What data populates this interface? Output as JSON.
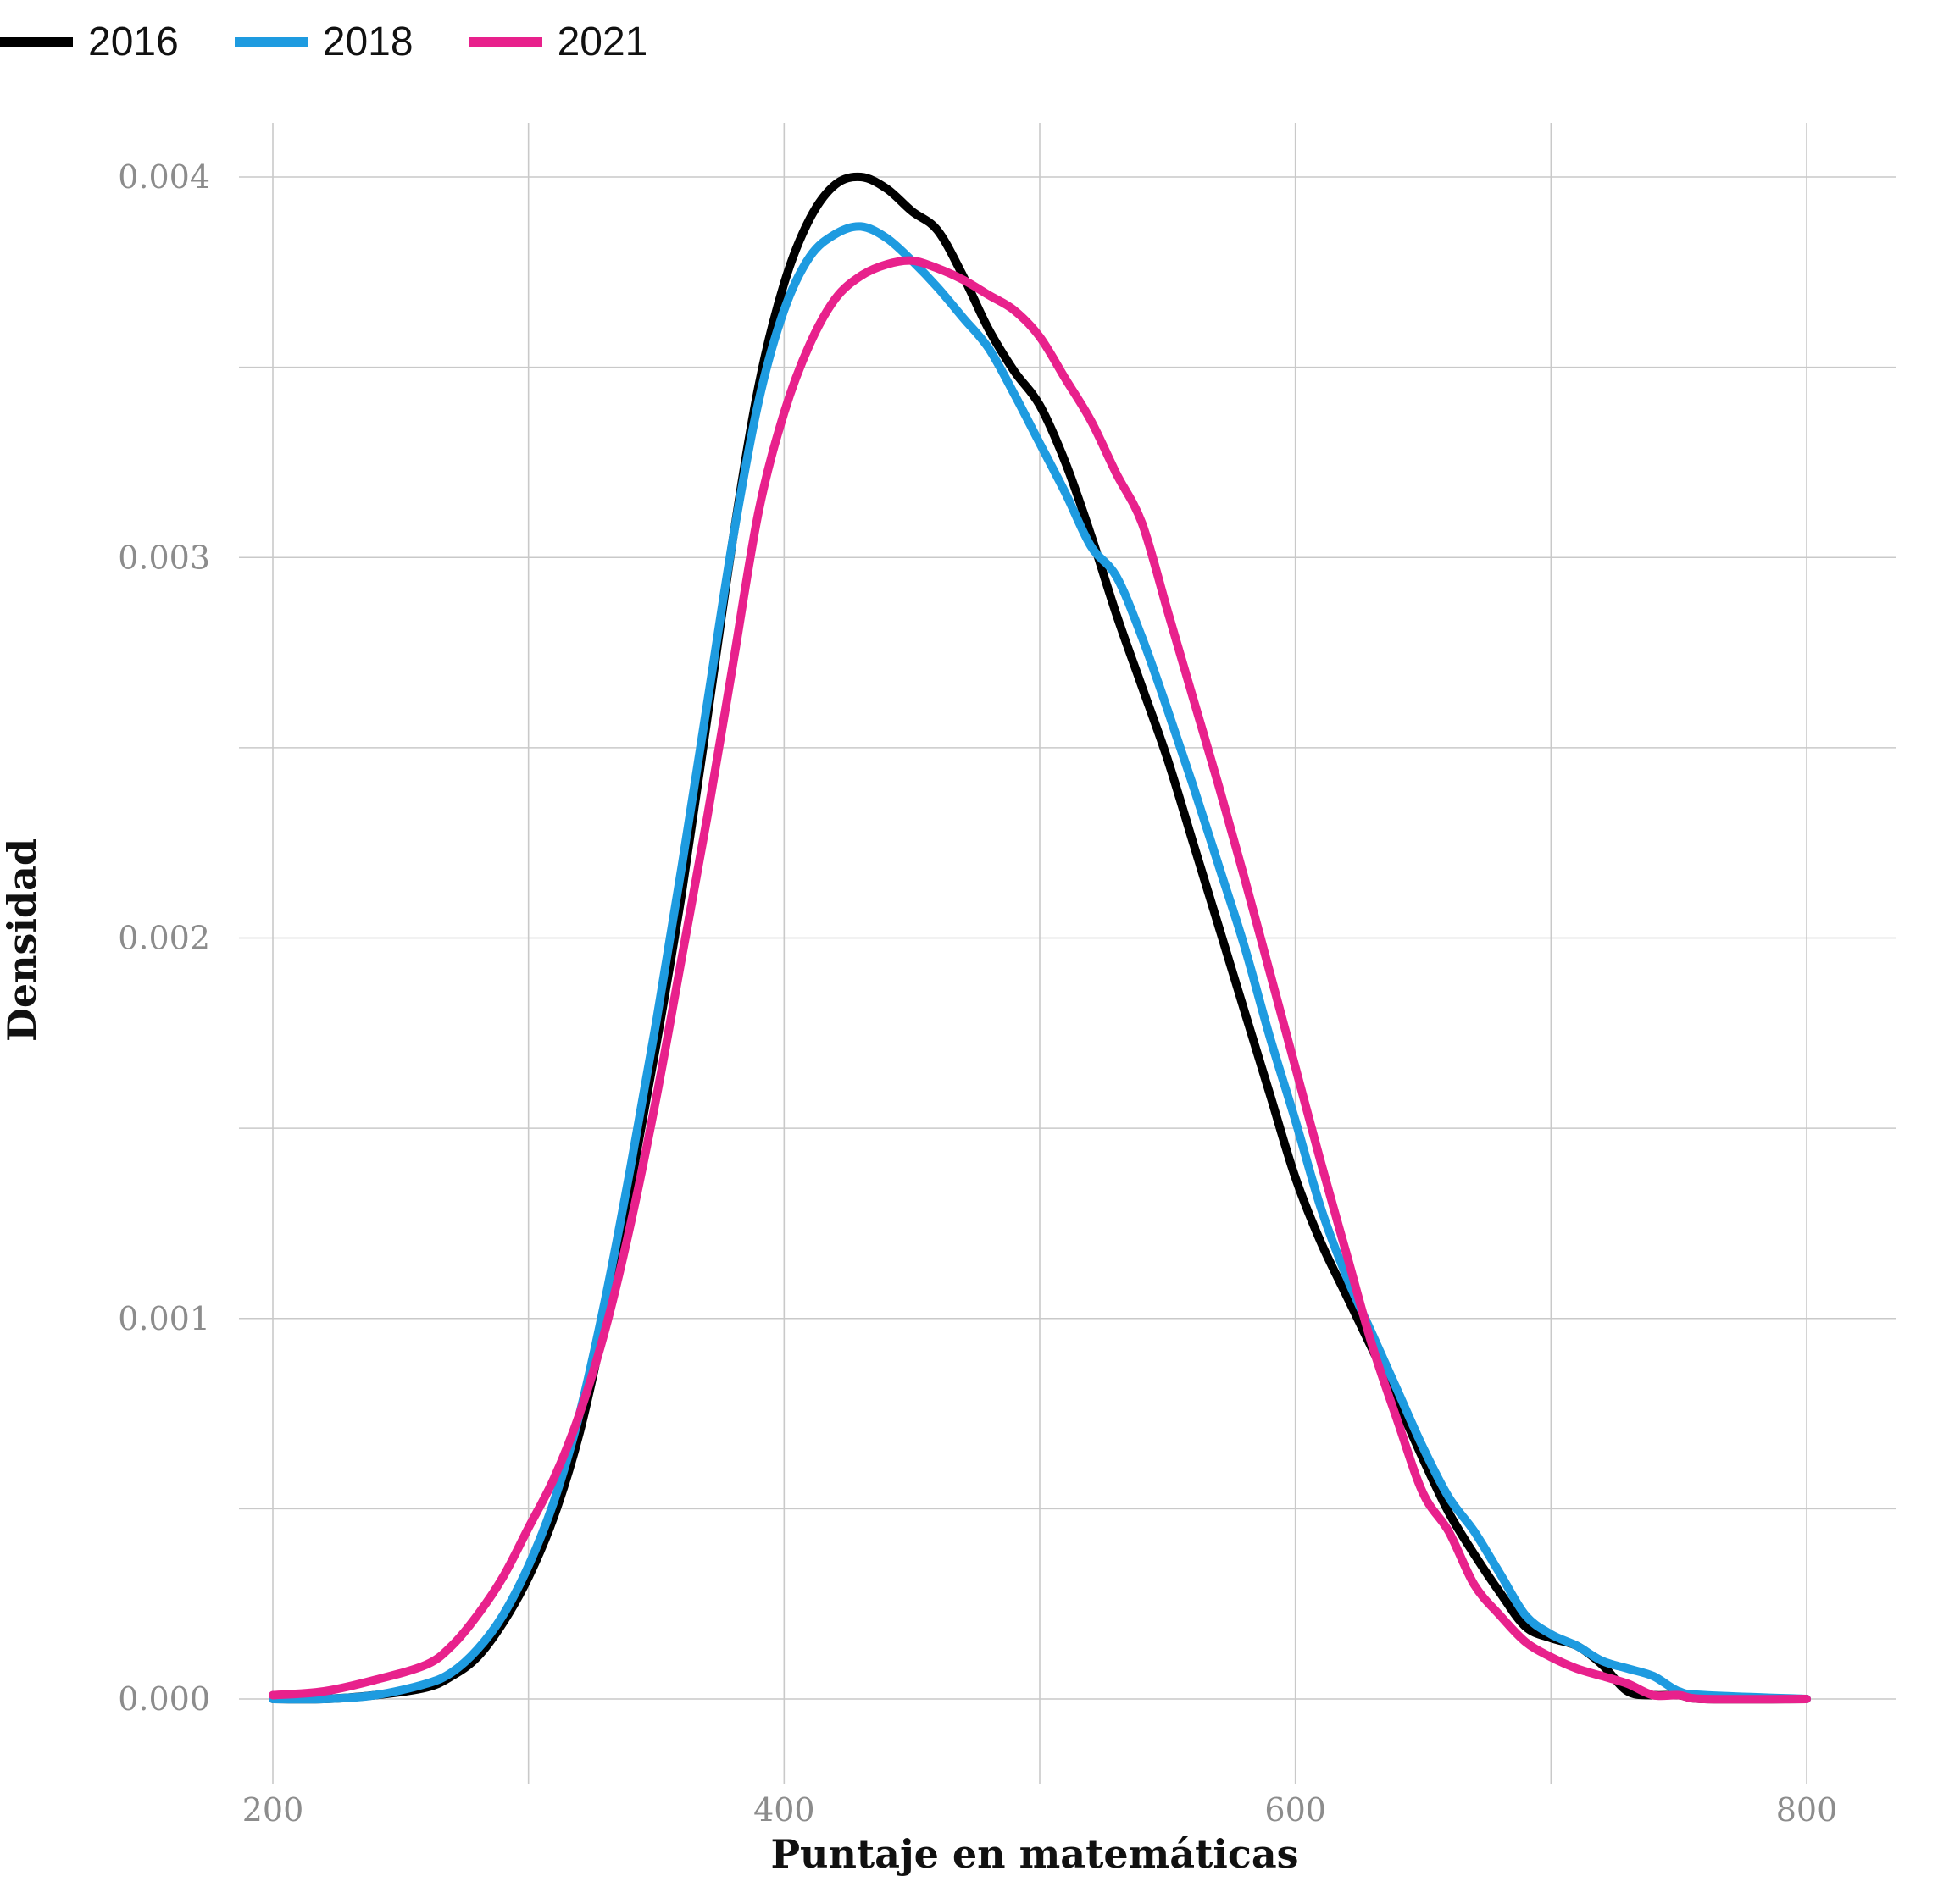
{
  "chart_data": {
    "type": "line",
    "title": "",
    "xlabel": "Puntaje en matemáticas",
    "ylabel": "Densidad",
    "xlim": [
      200,
      800
    ],
    "ylim": [
      0,
      0.004
    ],
    "x_ticks": [
      "200",
      "400",
      "600",
      "800"
    ],
    "y_ticks": [
      "0.000",
      "0.001",
      "0.002",
      "0.003",
      "0.004"
    ],
    "grid": true,
    "legend_position": "top-left",
    "series": [
      {
        "name": "2016",
        "color": "#000000",
        "points": [
          [
            200,
            0
          ],
          [
            220,
            0
          ],
          [
            240,
            1e-05
          ],
          [
            260,
            3e-05
          ],
          [
            270,
            6e-05
          ],
          [
            280,
            0.00011
          ],
          [
            290,
            0.0002
          ],
          [
            300,
            0.00032
          ],
          [
            310,
            0.00048
          ],
          [
            320,
            0.0007
          ],
          [
            330,
            0.001
          ],
          [
            340,
            0.00135
          ],
          [
            350,
            0.00172
          ],
          [
            360,
            0.00212
          ],
          [
            370,
            0.00258
          ],
          [
            380,
            0.00305
          ],
          [
            390,
            0.00345
          ],
          [
            400,
            0.00372
          ],
          [
            410,
            0.00389
          ],
          [
            420,
            0.00398
          ],
          [
            430,
            0.004
          ],
          [
            440,
            0.00397
          ],
          [
            450,
            0.00391
          ],
          [
            460,
            0.00386
          ],
          [
            470,
            0.00374
          ],
          [
            480,
            0.0036
          ],
          [
            490,
            0.00349
          ],
          [
            500,
            0.0034
          ],
          [
            510,
            0.00325
          ],
          [
            520,
            0.00306
          ],
          [
            530,
            0.00285
          ],
          [
            540,
            0.00266
          ],
          [
            550,
            0.00247
          ],
          [
            560,
            0.00225
          ],
          [
            570,
            0.00203
          ],
          [
            580,
            0.00181
          ],
          [
            590,
            0.00159
          ],
          [
            600,
            0.00137
          ],
          [
            610,
            0.0012
          ],
          [
            620,
            0.00106
          ],
          [
            630,
            0.00092
          ],
          [
            640,
            0.00078
          ],
          [
            650,
            0.00063
          ],
          [
            660,
            0.00049
          ],
          [
            670,
            0.00038
          ],
          [
            680,
            0.00028
          ],
          [
            690,
            0.00019
          ],
          [
            700,
            0.00016
          ],
          [
            710,
            0.00014
          ],
          [
            720,
            9e-05
          ],
          [
            730,
            2e-05
          ],
          [
            740,
            1e-05
          ],
          [
            750,
            1e-05
          ],
          [
            760,
            0
          ],
          [
            800,
            0
          ]
        ]
      },
      {
        "name": "2018",
        "color": "#1e9be0",
        "points": [
          [
            200,
            0
          ],
          [
            220,
            0
          ],
          [
            240,
            1e-05
          ],
          [
            260,
            4e-05
          ],
          [
            270,
            7e-05
          ],
          [
            280,
            0.00013
          ],
          [
            290,
            0.00022
          ],
          [
            300,
            0.00035
          ],
          [
            310,
            0.00052
          ],
          [
            320,
            0.00075
          ],
          [
            330,
            0.00105
          ],
          [
            340,
            0.0014
          ],
          [
            350,
            0.00178
          ],
          [
            360,
            0.00219
          ],
          [
            370,
            0.00262
          ],
          [
            380,
            0.00305
          ],
          [
            390,
            0.00341
          ],
          [
            400,
            0.00365
          ],
          [
            410,
            0.00379
          ],
          [
            420,
            0.00385
          ],
          [
            430,
            0.00387
          ],
          [
            440,
            0.00384
          ],
          [
            450,
            0.00378
          ],
          [
            460,
            0.00371
          ],
          [
            470,
            0.00363
          ],
          [
            480,
            0.00355
          ],
          [
            490,
            0.00343
          ],
          [
            500,
            0.0033
          ],
          [
            510,
            0.00317
          ],
          [
            520,
            0.00303
          ],
          [
            530,
            0.00295
          ],
          [
            540,
            0.00279
          ],
          [
            550,
            0.0026
          ],
          [
            560,
            0.0024
          ],
          [
            570,
            0.00219
          ],
          [
            580,
            0.00198
          ],
          [
            590,
            0.00174
          ],
          [
            600,
            0.00152
          ],
          [
            610,
            0.00129
          ],
          [
            620,
            0.00111
          ],
          [
            630,
            0.00096
          ],
          [
            640,
            0.00081
          ],
          [
            650,
            0.00066
          ],
          [
            660,
            0.00053
          ],
          [
            670,
            0.00044
          ],
          [
            680,
            0.00033
          ],
          [
            690,
            0.00022
          ],
          [
            700,
            0.00017
          ],
          [
            710,
            0.00014
          ],
          [
            720,
            0.0001
          ],
          [
            730,
            8e-05
          ],
          [
            740,
            6e-05
          ],
          [
            750,
            2e-05
          ],
          [
            760,
            1e-05
          ],
          [
            800,
            0
          ]
        ]
      },
      {
        "name": "2021",
        "color": "#e8218c",
        "points": [
          [
            200,
            1e-05
          ],
          [
            220,
            2e-05
          ],
          [
            240,
            5e-05
          ],
          [
            260,
            9e-05
          ],
          [
            270,
            0.00014
          ],
          [
            280,
            0.00022
          ],
          [
            290,
            0.00032
          ],
          [
            300,
            0.00045
          ],
          [
            310,
            0.00058
          ],
          [
            320,
            0.00075
          ],
          [
            330,
            0.00097
          ],
          [
            340,
            0.00125
          ],
          [
            350,
            0.00158
          ],
          [
            360,
            0.00195
          ],
          [
            370,
            0.00232
          ],
          [
            380,
            0.00272
          ],
          [
            390,
            0.00312
          ],
          [
            400,
            0.00338
          ],
          [
            410,
            0.00356
          ],
          [
            420,
            0.00368
          ],
          [
            430,
            0.00374
          ],
          [
            440,
            0.00377
          ],
          [
            450,
            0.00378
          ],
          [
            460,
            0.00376
          ],
          [
            470,
            0.00373
          ],
          [
            480,
            0.00369
          ],
          [
            490,
            0.00365
          ],
          [
            500,
            0.00358
          ],
          [
            510,
            0.00347
          ],
          [
            520,
            0.00336
          ],
          [
            530,
            0.00322
          ],
          [
            540,
            0.00309
          ],
          [
            550,
            0.00286
          ],
          [
            560,
            0.00263
          ],
          [
            570,
            0.0024
          ],
          [
            580,
            0.00216
          ],
          [
            590,
            0.00191
          ],
          [
            600,
            0.00166
          ],
          [
            610,
            0.00141
          ],
          [
            620,
            0.00117
          ],
          [
            630,
            0.00093
          ],
          [
            640,
            0.00073
          ],
          [
            650,
            0.00054
          ],
          [
            660,
            0.00044
          ],
          [
            670,
            0.0003
          ],
          [
            680,
            0.00022
          ],
          [
            690,
            0.00015
          ],
          [
            700,
            0.00011
          ],
          [
            710,
            8e-05
          ],
          [
            720,
            6e-05
          ],
          [
            730,
            4e-05
          ],
          [
            740,
            1e-05
          ],
          [
            750,
            1e-05
          ],
          [
            760,
            0
          ],
          [
            800,
            0
          ]
        ]
      }
    ]
  }
}
